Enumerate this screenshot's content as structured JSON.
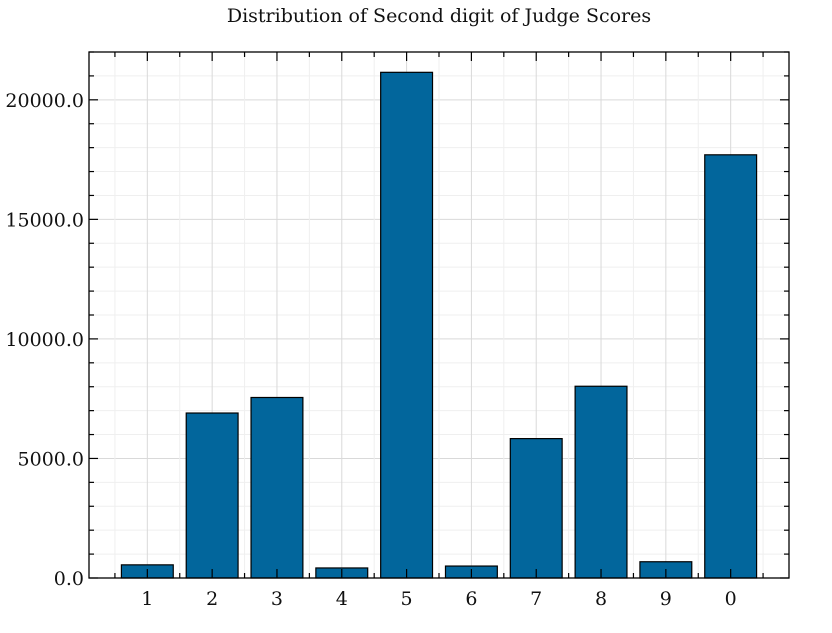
{
  "chart_data": {
    "type": "bar",
    "title": "Distribution of Second digit of Judge Scores",
    "xlabel": "",
    "ylabel": "",
    "categories": [
      "1",
      "2",
      "3",
      "4",
      "5",
      "6",
      "7",
      "8",
      "9",
      "0"
    ],
    "values": [
      550,
      6900,
      7550,
      420,
      21150,
      500,
      5830,
      8020,
      680,
      17700
    ],
    "ylim": [
      0,
      22000
    ],
    "yticks": [
      0,
      5000,
      10000,
      15000,
      20000
    ],
    "ytick_labels": [
      "0.0",
      "5000.0",
      "10000.0",
      "15000.0",
      "20000.0"
    ],
    "yminor_step": 1000,
    "grid": true,
    "bar_color": "#02669c",
    "edge_color": "#000000"
  }
}
